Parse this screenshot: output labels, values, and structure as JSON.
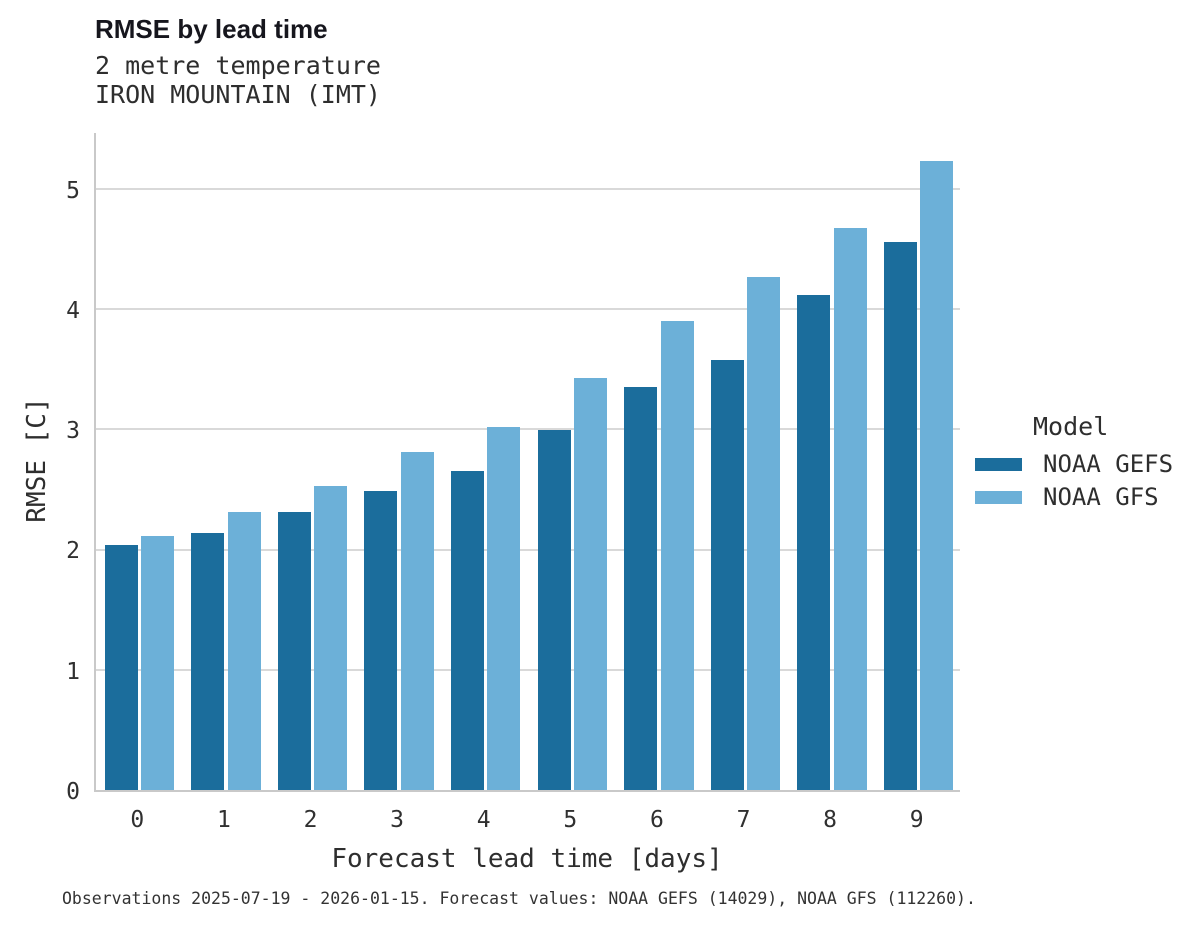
{
  "header": {
    "title": "RMSE by lead time",
    "subtitle_line1": "2 metre temperature",
    "subtitle_line2": "IRON MOUNTAIN (IMT)"
  },
  "legend": {
    "title": "Model",
    "items": [
      {
        "label": "NOAA GEFS",
        "color": "#1b6d9c"
      },
      {
        "label": "NOAA GFS",
        "color": "#6cb0d8"
      }
    ]
  },
  "footer": {
    "text": "Observations 2025-07-19 - 2026-01-15. Forecast values: NOAA GEFS (14029), NOAA GFS (112260)."
  },
  "chart_data": {
    "type": "bar",
    "title": "RMSE by lead time",
    "subtitle": [
      "2 metre temperature",
      "IRON MOUNTAIN (IMT)"
    ],
    "xlabel": "Forecast lead time [days]",
    "ylabel": "RMSE [C]",
    "categories": [
      "0",
      "1",
      "2",
      "3",
      "4",
      "5",
      "6",
      "7",
      "8",
      "9"
    ],
    "series": [
      {
        "name": "NOAA GEFS",
        "color": "#1b6d9c",
        "values": [
          2.04,
          2.14,
          2.31,
          2.49,
          2.65,
          2.99,
          3.35,
          3.58,
          4.12,
          4.56
        ]
      },
      {
        "name": "NOAA GFS",
        "color": "#6cb0d8",
        "values": [
          2.11,
          2.31,
          2.53,
          2.81,
          3.02,
          3.43,
          3.9,
          4.27,
          4.67,
          5.23
        ]
      }
    ],
    "ylim": [
      0,
      5.48
    ],
    "yticks": [
      0,
      1,
      2,
      3,
      4,
      5
    ],
    "grid": true,
    "legend_title": "Model",
    "legend_position": "right",
    "colors": {
      "grid": "#d9d9d9",
      "axis": "#c9c9c9",
      "title_text": "#16161d",
      "body_text": "#303030"
    }
  }
}
